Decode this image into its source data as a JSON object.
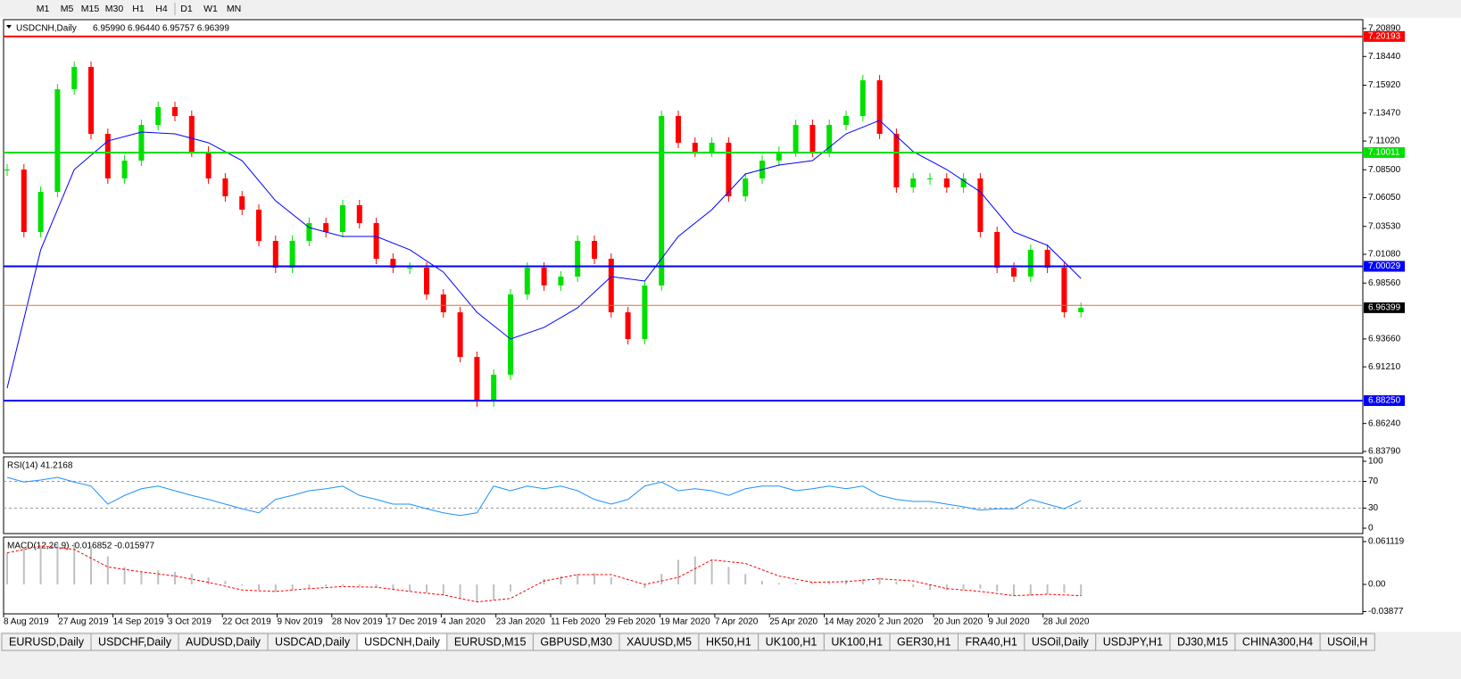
{
  "toolbar": [
    "M1",
    "M5",
    "M15",
    "M30",
    "H1",
    "H4",
    "D1",
    "W1",
    "MN"
  ],
  "chart_data": [
    {
      "type": "candlestick",
      "title": "USDCNH,Daily",
      "subtitle": "6.95990 6.96440 6.95757 6.96399",
      "up_color": "#00e000",
      "down_color": "#ff0000",
      "values": [
        7.0852,
        7.0304,
        7.0656,
        7.1556,
        7.1752,
        7.1165,
        7.0774,
        7.093,
        7.1243,
        7.14,
        7.1322,
        7.1009,
        7.0774,
        7.0617,
        7.05,
        7.0226,
        6.9991,
        7.0226,
        7.0382,
        7.0304,
        7.0539,
        7.0382,
        7.0069,
        6.9991,
        6.9991,
        6.9756,
        6.96,
        6.9208,
        6.8817,
        6.9052,
        6.9756,
        6.9991,
        6.9835,
        6.9913,
        7.0226,
        7.0069,
        6.96,
        6.9365,
        6.9835,
        7.1322,
        7.1087,
        7.1009,
        7.1087,
        7.0617,
        7.0774,
        7.093,
        7.1009,
        7.1243,
        7.1009,
        7.1243,
        7.1322,
        7.1635,
        7.1165,
        7.0695,
        7.0774,
        7.0774,
        7.0695,
        7.0774,
        7.0304,
        6.9991,
        6.9913,
        7.0148,
        6.9991,
        6.96,
        6.96399
      ],
      "ma": {
        "color": "#0000ff",
        "values": [
          6.8934,
          7.0148,
          7.0852,
          7.1102,
          7.1181,
          7.1165,
          7.1087,
          7.093,
          7.0578,
          7.0343,
          7.0265,
          7.0265,
          7.0148,
          6.9952,
          6.96,
          6.9365,
          6.9467,
          6.9639,
          6.9913,
          6.9874,
          7.0265,
          7.05,
          7.0813,
          7.0891,
          7.093,
          7.1165,
          7.1283,
          7.1009,
          7.0852,
          7.0656,
          7.0304,
          7.0187,
          6.9897
        ]
      },
      "ylim": [
        6.8363,
        7.2167
      ],
      "yticks": [
        {
          "value": 7.2089,
          "label": "7.20890"
        },
        {
          "value": 7.1844,
          "label": "7.18440"
        },
        {
          "value": 7.1592,
          "label": "7.15920"
        },
        {
          "value": 7.1347,
          "label": "7.13470"
        },
        {
          "value": 7.1102,
          "label": "7.11020"
        },
        {
          "value": 7.085,
          "label": "7.08500"
        },
        {
          "value": 7.0605,
          "label": "7.06050"
        },
        {
          "value": 7.0353,
          "label": "7.03530"
        },
        {
          "value": 7.0108,
          "label": "7.01080"
        },
        {
          "value": 6.9856,
          "label": "6.98560"
        },
        {
          "value": 6.9366,
          "label": "6.93660"
        },
        {
          "value": 6.9121,
          "label": "6.91210"
        },
        {
          "value": 6.8624,
          "label": "6.86240"
        },
        {
          "value": 6.8379,
          "label": "6.83790"
        }
      ],
      "levels": [
        {
          "value": 7.20193,
          "color": "#ff0000"
        },
        {
          "value": 7.10011,
          "color": "#00e000"
        },
        {
          "value": 7.00029,
          "color": "#0000ff"
        },
        {
          "value": 6.8825,
          "label": "6.88250",
          "color": "#0000ff"
        }
      ],
      "ask_line": {
        "value": 6.966,
        "color": "#e07030"
      },
      "last_price": 6.96399,
      "x_labels": [
        "8 Aug 2019",
        "27 Aug 2019",
        "14 Sep 2019",
        "3 Oct 2019",
        "22 Oct 2019",
        "9 Nov 2019",
        "28 Nov 2019",
        "17 Dec 2019",
        "4 Jan 2020",
        "23 Jan 2020",
        "11 Feb 2020",
        "29 Feb 2020",
        "19 Mar 2020",
        "7 Apr 2020",
        "25 Apr 2020",
        "14 May 2020",
        "2 Jun 2020",
        "20 Jun 2020",
        "9 Jul 2020",
        "28 Jul 2020"
      ]
    },
    {
      "type": "line",
      "title": "RSI(14) 41.2168",
      "color": "#1e90ff",
      "values": [
        76,
        69,
        72,
        76,
        69,
        63,
        36,
        49,
        59,
        63,
        56,
        49,
        43,
        36,
        29,
        23,
        43,
        49,
        56,
        59,
        63,
        49,
        43,
        36,
        36,
        29,
        23,
        19,
        23,
        63,
        56,
        63,
        59,
        63,
        56,
        43,
        36,
        43,
        63,
        69,
        56,
        59,
        56,
        49,
        59,
        63,
        63,
        56,
        59,
        63,
        59,
        63,
        49,
        43,
        40,
        40,
        36,
        32,
        27,
        29,
        29,
        43,
        36,
        29,
        41.2
      ],
      "ylim": [
        -8,
        106.7
      ],
      "yticks": [
        100,
        70,
        30,
        0
      ]
    },
    {
      "type": "macd",
      "title": "MACD(12,26,9) -0.016852 -0.015977",
      "color": "#c0c0c0",
      "signal_color": "#ff0000",
      "values": [
        0.045,
        0.05,
        0.055,
        0.058,
        0.06,
        0.055,
        0.04,
        0.025,
        0.018,
        0.02,
        0.018,
        0.015,
        0.01,
        0.005,
        -0.002,
        -0.008,
        -0.01,
        -0.008,
        -0.005,
        -0.003,
        -0.002,
        -0.002,
        -0.004,
        -0.008,
        -0.01,
        -0.012,
        -0.015,
        -0.02,
        -0.025,
        -0.022,
        -0.01,
        0.0,
        0.008,
        0.012,
        0.015,
        0.016,
        0.01,
        0.0,
        -0.005,
        0.015,
        0.035,
        0.04,
        0.035,
        0.025,
        0.015,
        0.005,
        0.002,
        0.002,
        0.003,
        0.004,
        0.006,
        0.008,
        0.01,
        0.004,
        -0.004,
        -0.008,
        -0.008,
        -0.007,
        -0.006,
        -0.01,
        -0.015,
        -0.016,
        -0.014,
        -0.012,
        -0.016852
      ],
      "signal": [
        0.045,
        0.055,
        0.05,
        0.025,
        0.018,
        0.012,
        0.003,
        -0.008,
        -0.01,
        -0.006,
        -0.003,
        -0.004,
        -0.01,
        -0.015,
        -0.025,
        -0.02,
        0.005,
        0.014,
        0.014,
        0.0,
        0.01,
        0.035,
        0.03,
        0.012,
        0.003,
        0.004,
        0.008,
        0.005,
        -0.006,
        -0.01,
        -0.016,
        -0.014,
        -0.015977
      ],
      "ylim": [
        -0.042,
        0.0675
      ],
      "yticks": [
        0.061119,
        {
          "value": 0,
          "label": "0.00"
        },
        -0.03877
      ]
    }
  ],
  "tabs": [
    "EURUSD,Daily",
    "USDCHF,Daily",
    "AUDUSD,Daily",
    "USDCAD,Daily",
    "USDCNH,Daily",
    "EURUSD,M15",
    "GBPUSD,M30",
    "XAUUSD,M5",
    "HK50,H1",
    "UK100,H1",
    "UK100,H1",
    "GER30,H1",
    "FRA40,H1",
    "USOil,Daily",
    "USDJPY,H1",
    "DJ30,M15",
    "CHINA300,H4",
    "USOil,H"
  ],
  "active_tab": 4
}
